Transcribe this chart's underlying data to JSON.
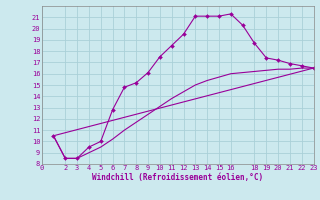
{
  "xlabel": "Windchill (Refroidissement éolien,°C)",
  "bg_color": "#cce9ee",
  "grid_color": "#aad0d8",
  "line_color": "#990099",
  "spine_color": "#888888",
  "xmin": 0,
  "xmax": 23,
  "ymin": 8,
  "ymax": 22,
  "yticks": [
    8,
    9,
    10,
    11,
    12,
    13,
    14,
    15,
    16,
    17,
    18,
    19,
    20,
    21
  ],
  "xticks": [
    0,
    2,
    3,
    4,
    5,
    6,
    7,
    8,
    9,
    10,
    11,
    12,
    13,
    14,
    15,
    16,
    18,
    19,
    20,
    21,
    22,
    23
  ],
  "curve1_x": [
    1,
    2,
    3,
    4,
    5,
    6,
    7,
    8,
    9,
    10,
    11,
    12,
    13,
    14,
    15,
    16,
    17,
    18,
    19,
    20,
    21,
    22,
    23
  ],
  "curve1_y": [
    10.5,
    8.5,
    8.5,
    9.5,
    10.0,
    12.8,
    14.8,
    15.2,
    16.1,
    17.5,
    18.5,
    19.5,
    21.1,
    21.1,
    21.1,
    21.3,
    20.3,
    18.7,
    17.4,
    17.2,
    16.9,
    16.7,
    16.5
  ],
  "curve2_x": [
    1,
    2,
    3,
    4,
    5,
    6,
    7,
    8,
    9,
    10,
    11,
    12,
    13,
    14,
    15,
    16,
    17,
    18,
    19,
    20,
    21,
    22,
    23
  ],
  "curve2_y": [
    10.5,
    8.5,
    8.5,
    9.0,
    9.5,
    10.2,
    11.0,
    11.7,
    12.4,
    13.1,
    13.8,
    14.4,
    15.0,
    15.4,
    15.7,
    16.0,
    16.1,
    16.2,
    16.3,
    16.4,
    16.4,
    16.5,
    16.5
  ],
  "curve3_x": [
    1,
    23
  ],
  "curve3_y": [
    10.5,
    16.5
  ]
}
